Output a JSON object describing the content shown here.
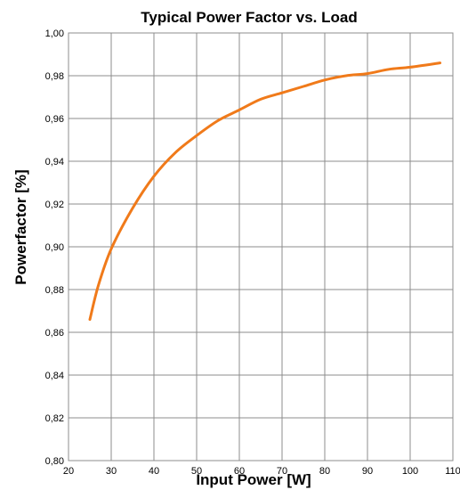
{
  "chart_data": {
    "type": "line",
    "title": "Typical Power Factor vs. Load",
    "xlabel": "Input Power [W]",
    "ylabel": "Powerfactor [%]",
    "xlim": [
      20,
      110
    ],
    "ylim": [
      0.8,
      1.0
    ],
    "x_ticks": [
      20,
      30,
      40,
      50,
      60,
      70,
      80,
      90,
      100,
      110
    ],
    "x_tick_labels": [
      "20",
      "30",
      "40",
      "50",
      "60",
      "70",
      "80",
      "90",
      "100",
      "110"
    ],
    "y_ticks": [
      0.8,
      0.82,
      0.84,
      0.86,
      0.88,
      0.9,
      0.92,
      0.94,
      0.96,
      0.98,
      1.0
    ],
    "y_tick_labels": [
      "0,80",
      "0,82",
      "0,84",
      "0,86",
      "0,88",
      "0,90",
      "0,92",
      "0,94",
      "0,96",
      "0,98",
      "1,00"
    ],
    "grid": true,
    "legend": "none",
    "series": [
      {
        "color": "#F07A1A",
        "x": [
          25,
          27,
          30,
          35,
          40,
          45,
          50,
          55,
          60,
          65,
          70,
          75,
          80,
          85,
          90,
          95,
          100,
          107
        ],
        "y": [
          0.866,
          0.882,
          0.899,
          0.918,
          0.933,
          0.944,
          0.952,
          0.959,
          0.964,
          0.969,
          0.972,
          0.975,
          0.978,
          0.98,
          0.981,
          0.983,
          0.984,
          0.986
        ]
      }
    ]
  }
}
